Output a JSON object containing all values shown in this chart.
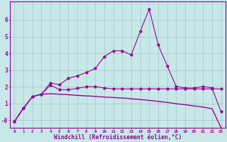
{
  "background_color": "#c8e8e8",
  "grid_color": "#a0c8c8",
  "line_color": "#990099",
  "x_values": [
    0,
    1,
    2,
    3,
    4,
    5,
    6,
    7,
    8,
    9,
    10,
    11,
    12,
    13,
    14,
    15,
    16,
    17,
    18,
    19,
    20,
    21,
    22,
    23
  ],
  "line1_y": [
    -0.08,
    0.72,
    1.4,
    1.55,
    2.22,
    2.12,
    2.5,
    2.65,
    2.85,
    3.1,
    3.8,
    4.15,
    4.15,
    3.9,
    5.3,
    6.65,
    4.5,
    3.25,
    2.02,
    1.92,
    1.92,
    2.02,
    1.92,
    0.5
  ],
  "line2_y": [
    -0.08,
    0.72,
    1.4,
    1.55,
    2.1,
    1.82,
    1.82,
    1.9,
    2.0,
    2.0,
    1.92,
    1.87,
    1.87,
    1.87,
    1.87,
    1.87,
    1.87,
    1.87,
    1.87,
    1.87,
    1.87,
    1.87,
    1.87,
    1.87
  ],
  "line3_y": [
    -0.08,
    0.72,
    1.4,
    1.55,
    1.58,
    1.55,
    1.52,
    1.48,
    1.45,
    1.42,
    1.38,
    1.35,
    1.32,
    1.28,
    1.23,
    1.18,
    1.12,
    1.06,
    0.98,
    0.92,
    0.85,
    0.78,
    0.68,
    -0.45
  ],
  "ylim": [
    -0.45,
    7.1
  ],
  "xlim": [
    -0.5,
    23.5
  ],
  "yticks": [
    0,
    1,
    2,
    3,
    4,
    5,
    6
  ],
  "ytick_labels": [
    "-0",
    "1",
    "2",
    "3",
    "4",
    "5",
    "6"
  ],
  "xtick_labels": [
    "0",
    "1",
    "2",
    "3",
    "4",
    "5",
    "6",
    "7",
    "8",
    "9",
    "10",
    "11",
    "12",
    "13",
    "14",
    "15",
    "16",
    "17",
    "18",
    "19",
    "20",
    "21",
    "22",
    "23"
  ],
  "xlabel": "Windchill (Refroidissement éolien,°C)",
  "marker": "*",
  "marker_size": 2.8,
  "linewidth": 0.8
}
